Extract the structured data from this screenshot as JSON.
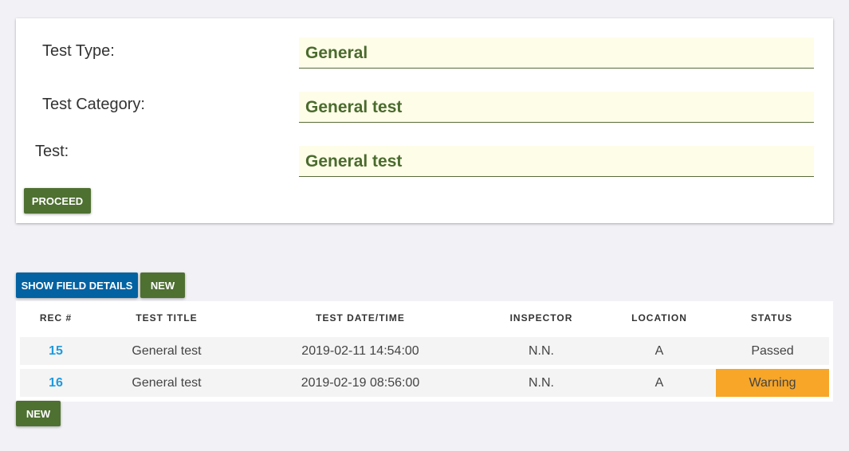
{
  "form": {
    "test_type": {
      "label": "Test Type:",
      "value": "General"
    },
    "test_category": {
      "label": "Test Category:",
      "value": "General test"
    },
    "test": {
      "label": "Test:",
      "value": "General test"
    },
    "proceed_label": "PROCEED"
  },
  "toolbar": {
    "show_field_details_label": "SHOW FIELD DETAILS",
    "new_label": "NEW"
  },
  "table": {
    "columns": [
      "REC #",
      "TEST TITLE",
      "TEST DATE/TIME",
      "INSPECTOR",
      "LOCATION",
      "STATUS"
    ],
    "rows": [
      {
        "rec": "15",
        "title": "General test",
        "datetime": "2019-02-11 14:54:00",
        "inspector": "N.N.",
        "location": "A",
        "status": "Passed",
        "status_color": "#f4f4f4"
      },
      {
        "rec": "16",
        "title": "General test",
        "datetime": "2019-02-19 08:56:00",
        "inspector": "N.N.",
        "location": "A",
        "status": "Warning",
        "status_color": "#f7a628"
      }
    ]
  },
  "footer": {
    "new_label": "NEW"
  }
}
